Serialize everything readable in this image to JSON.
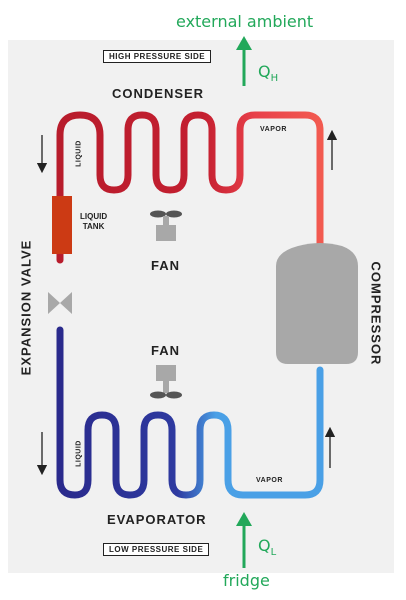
{
  "labels": {
    "external_ambient": "external ambient",
    "fridge": "fridge",
    "qh_main": "Q",
    "qh_sub": "H",
    "ql_main": "Q",
    "ql_sub": "L",
    "high_pressure": "HIGH PRESSURE SIDE",
    "low_pressure": "LOW PRESSURE SIDE",
    "condenser": "CONDENSER",
    "evaporator": "EVAPORATOR",
    "compressor": "COMPRESSOR",
    "expansion_valve": "EXPANSION VALVE",
    "liquid_top": "LIQUID",
    "liquid_bottom": "LIQUID",
    "vapor_top": "VAPOR",
    "vapor_bottom": "VAPOR",
    "liquid_tank_line1": "LIQUID",
    "liquid_tank_line2": "TANK",
    "fan_top": "FAN",
    "fan_bottom": "FAN"
  },
  "colors": {
    "hot_liquid": "#b81c2c",
    "hot_vapor": "#f04848",
    "cold_liquid": "#2a2a8c",
    "cold_vapor": "#4aa0e6",
    "device_gray": "#a8a8a8",
    "tank": "#cc3a14",
    "heat_arrow": "#22a85a",
    "panel": "#f1f1f1"
  }
}
